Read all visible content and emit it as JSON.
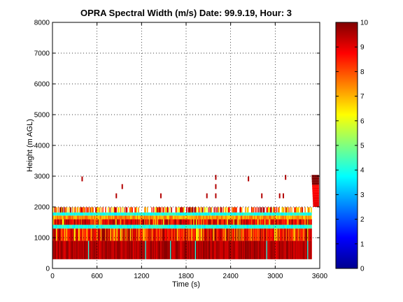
{
  "chart_data": {
    "type": "heatmap",
    "title": "OPRA Spectral Width (m/s)  Date: 99.9.19, Hour: 3",
    "xlabel": "Time (s)",
    "ylabel": "Height (m AGL)",
    "xlim": [
      0,
      3600
    ],
    "ylim": [
      0,
      8000
    ],
    "x_ticks": [
      "0",
      "600",
      "1200",
      "1800",
      "2400",
      "3000",
      "3600"
    ],
    "y_ticks": [
      "0",
      "1000",
      "2000",
      "3000",
      "4000",
      "5000",
      "6000",
      "7000",
      "8000"
    ],
    "colorbar": {
      "range": [
        0,
        10
      ],
      "ticks": [
        "0",
        "1",
        "2",
        "3",
        "4",
        "5",
        "6",
        "7",
        "8",
        "9",
        "10"
      ],
      "colormap": "jet"
    },
    "grid": true,
    "bands": [
      {
        "y_start": 300,
        "y_end": 900,
        "value_range": [
          9,
          10
        ],
        "label": "strong"
      },
      {
        "y_start": 900,
        "y_end": 1300,
        "value_range": [
          7.5,
          10
        ],
        "label": "mixed"
      },
      {
        "y_start": 1300,
        "y_end": 1420,
        "value_range": [
          3.5,
          4.5
        ],
        "label": "cyan"
      },
      {
        "y_start": 1420,
        "y_end": 1600,
        "value_range": [
          8,
          10
        ],
        "label": "mixed"
      },
      {
        "y_start": 1600,
        "y_end": 1720,
        "value_range": [
          6.5,
          8
        ],
        "label": "yellow"
      },
      {
        "y_start": 1720,
        "y_end": 1820,
        "value_range": [
          3.5,
          4.5
        ],
        "label": "cyan"
      },
      {
        "y_start": 1820,
        "y_end": 1990,
        "value_range": [
          6,
          10
        ],
        "label": "sparse"
      }
    ],
    "isolated_points": [
      {
        "x": 400,
        "y": 2900,
        "value": 9.5
      },
      {
        "x": 940,
        "y": 2650,
        "value": 9.5
      },
      {
        "x": 860,
        "y": 2350,
        "value": 9.5
      },
      {
        "x": 1460,
        "y": 2350,
        "value": 9.5
      },
      {
        "x": 2080,
        "y": 2350,
        "value": 9.5
      },
      {
        "x": 2200,
        "y": 2950,
        "value": 9.5
      },
      {
        "x": 2200,
        "y": 2650,
        "value": 9.5
      },
      {
        "x": 2200,
        "y": 2350,
        "value": 9.5
      },
      {
        "x": 2640,
        "y": 2900,
        "value": 9.5
      },
      {
        "x": 2820,
        "y": 2350,
        "value": 9.5
      },
      {
        "x": 3140,
        "y": 2950,
        "value": 9.5
      },
      {
        "x": 3110,
        "y": 2350,
        "value": 9.5
      },
      {
        "x": 3060,
        "y": 2350,
        "value": 9.5
      }
    ],
    "right_feature": {
      "x_start": 3480,
      "x_end": 3590,
      "y_start": 2000,
      "y_end": 3000,
      "value": 9
    }
  }
}
